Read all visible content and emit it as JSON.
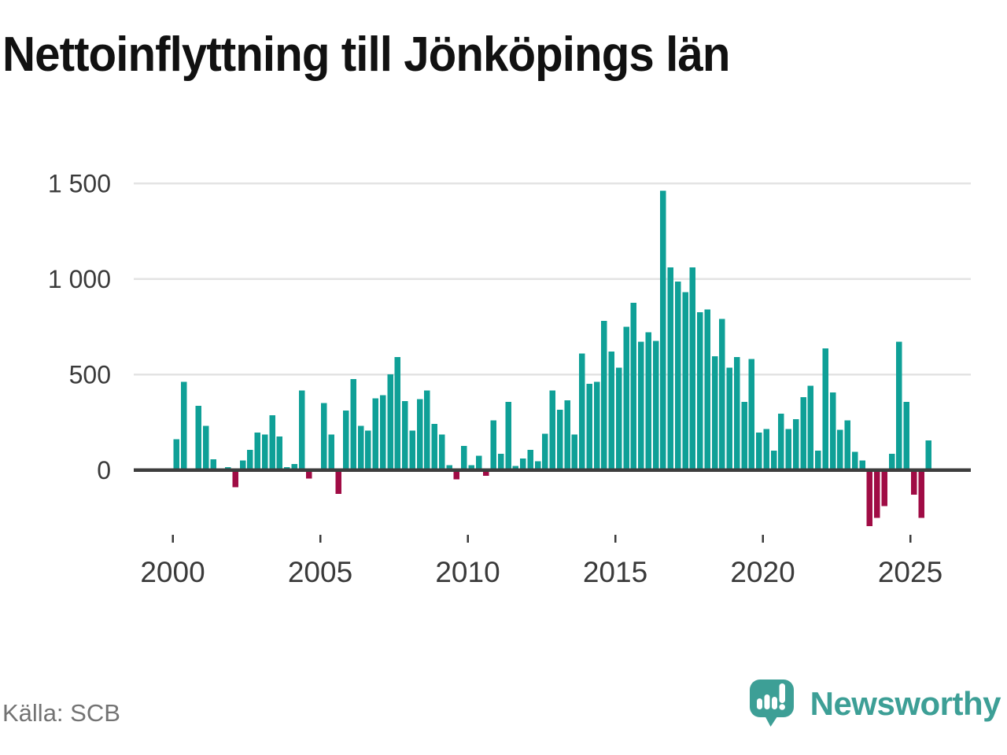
{
  "title": "Nettoinflyttning till Jönköpings län",
  "source": "Källa: SCB",
  "branding": {
    "name": "Newsworthy"
  },
  "colors": {
    "positive_bar": "#0FA097",
    "negative_bar": "#A00C45",
    "grid_line": "#E3E3E3",
    "zero_line": "#3D3D3D",
    "tick_text": "#3A3A3A",
    "title_text": "#111111",
    "source_text": "#737373",
    "brand_teal": "#3D9F96"
  },
  "chart_data": {
    "type": "bar",
    "title": "Nettoinflyttning till Jönköpings län",
    "xlabel": "",
    "ylabel": "",
    "frequency": "quarterly",
    "period_start": "2000 Q1",
    "period_end": "2025 Q3",
    "ylim": [
      -300,
      1500
    ],
    "grid": "horizontal",
    "y_ticks": [
      {
        "value": 0,
        "label": "0"
      },
      {
        "value": 500,
        "label": "500"
      },
      {
        "value": 1000,
        "label": "1 000"
      },
      {
        "value": 1500,
        "label": "1 500"
      }
    ],
    "x_ticks": [
      {
        "value": 2000,
        "label": "2000"
      },
      {
        "value": 2005,
        "label": "2005"
      },
      {
        "value": 2010,
        "label": "2010"
      },
      {
        "value": 2015,
        "label": "2015"
      },
      {
        "value": 2020,
        "label": "2020"
      },
      {
        "value": 2025,
        "label": "2025"
      }
    ],
    "series": [
      {
        "name": "Nettoinflyttning",
        "values": [
          160,
          460,
          0,
          335,
          230,
          55,
          0,
          15,
          -90,
          50,
          105,
          195,
          185,
          285,
          175,
          15,
          30,
          415,
          -45,
          0,
          350,
          185,
          -125,
          310,
          475,
          230,
          205,
          375,
          390,
          500,
          590,
          360,
          205,
          370,
          415,
          240,
          185,
          25,
          -50,
          125,
          25,
          75,
          -30,
          260,
          85,
          355,
          20,
          60,
          105,
          45,
          190,
          415,
          315,
          365,
          185,
          610,
          450,
          460,
          780,
          620,
          535,
          750,
          875,
          670,
          720,
          675,
          1460,
          1060,
          985,
          930,
          1060,
          825,
          840,
          595,
          790,
          535,
          590,
          355,
          580,
          195,
          215,
          100,
          295,
          215,
          265,
          380,
          440,
          100,
          635,
          405,
          210,
          260,
          95,
          50,
          -295,
          -250,
          -190,
          85,
          670,
          355,
          -130,
          -250,
          155
        ]
      }
    ]
  }
}
